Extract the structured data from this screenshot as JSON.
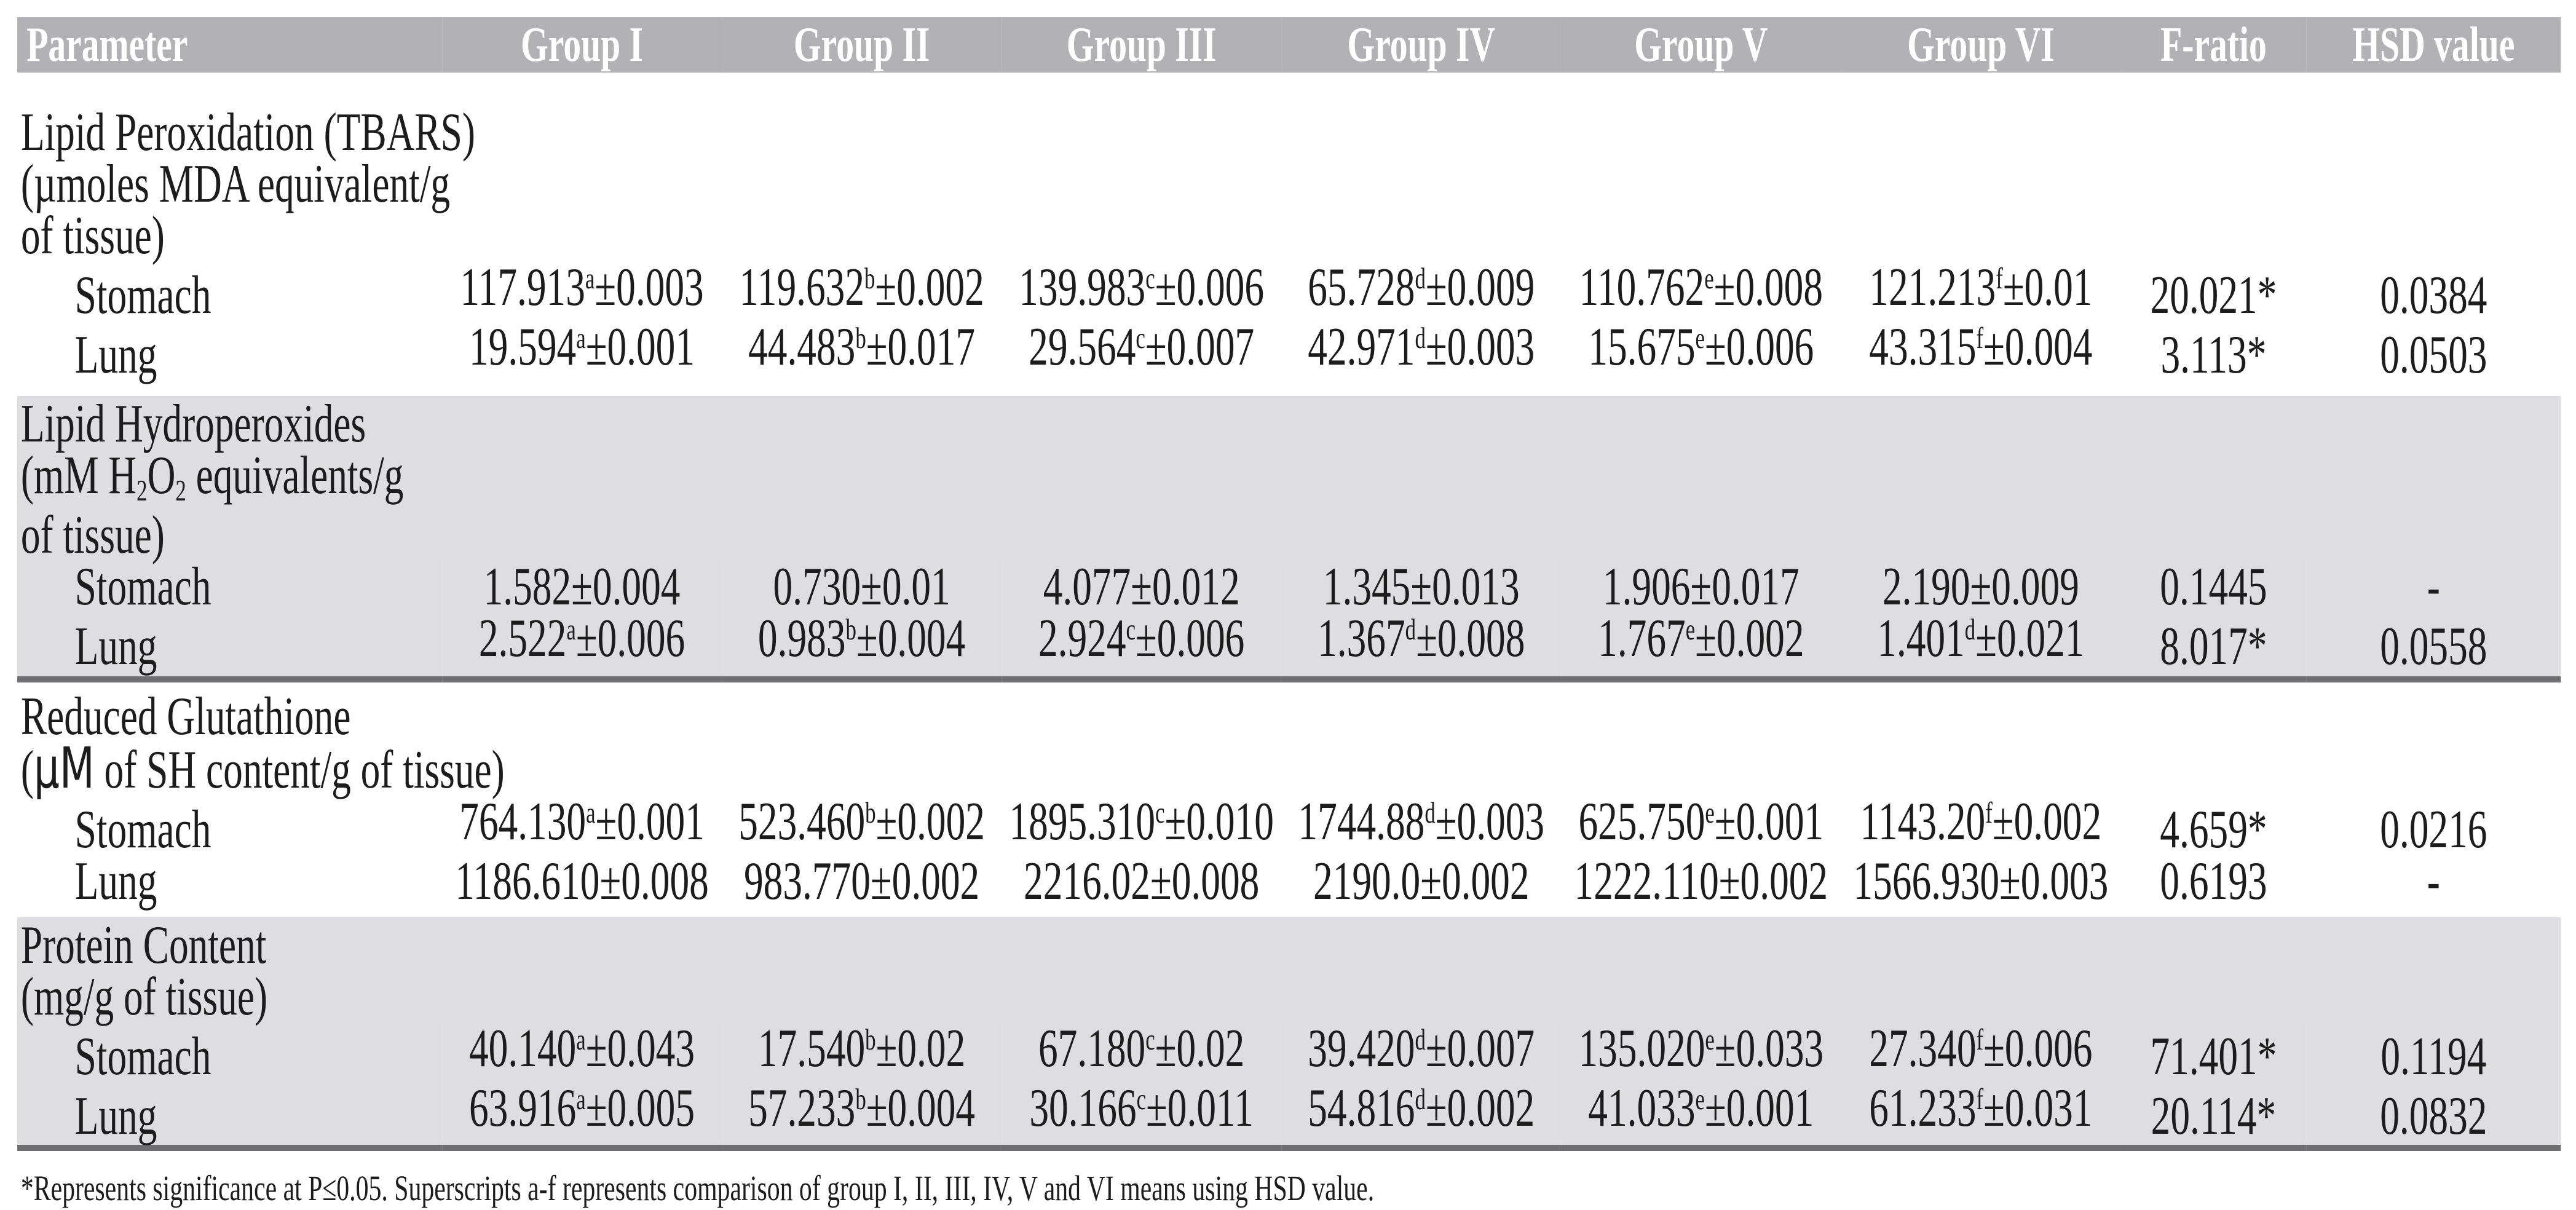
{
  "colors": {
    "header_bg": "#b2b2b4",
    "shaded_row_bg": "#dedee0",
    "section_rule": "#6e6e70",
    "header_text": "#ffffff",
    "body_text": "#1c1c1c"
  },
  "table": {
    "columns": [
      "Parameter",
      "Group I",
      "Group II",
      "Group III",
      "Group IV",
      "Group V",
      "Group VI",
      "F-ratio",
      "HSD value"
    ],
    "sections": [
      {
        "shaded": false,
        "param_lines": [
          "Lipid Peroxidation (TBARS)",
          "(µmoles MDA equivalent/g",
          "of tissue)"
        ],
        "rows": [
          {
            "label": "Stomach",
            "values": [
              "117.913^a±0.003",
              "119.632^b±0.002",
              "139.983^c±0.006",
              "65.728^d±0.009",
              "110.762^e±0.008",
              "121.213^f±0.01"
            ],
            "f": "20.021*",
            "hsd": "0.0384"
          },
          {
            "label": "Lung",
            "values": [
              "19.594^a±0.001",
              "44.483^b±0.017",
              "29.564^c±0.007",
              "42.971^d±0.003",
              "15.675^e±0.006",
              "43.315^f±0.004"
            ],
            "f": "3.113*",
            "hsd": "0.0503"
          }
        ]
      },
      {
        "shaded": true,
        "param_lines": [
          "Lipid Hydroperoxides",
          "(mM H_2O_2 equivalents/g",
          "of tissue)"
        ],
        "rows": [
          {
            "label": "Stomach",
            "values": [
              "1.582±0.004",
              "0.730±0.01",
              "4.077±0.012",
              "1.345±0.013",
              "1.906±0.017",
              "2.190±0.009"
            ],
            "f": "0.1445",
            "hsd": "-"
          },
          {
            "label": "Lung",
            "values": [
              "2.522^a±0.006",
              "0.983^b±0.004",
              "2.924^c±0.006",
              "1.367^d±0.008",
              "1.767^e±0.002",
              "1.401^d±0.021"
            ],
            "f": "8.017*",
            "hsd": "0.0558"
          }
        ]
      },
      {
        "shaded": false,
        "param_lines": [
          "Reduced Glutathione",
          "(~µM~ of SH content/g of tissue)"
        ],
        "rows": [
          {
            "label": "Stomach",
            "values": [
              "764.130^a±0.001",
              "523.460^b±0.002",
              "1895.310^c±0.010",
              "1744.88^d±0.003",
              "625.750^e±0.001",
              "1143.20^f±0.002"
            ],
            "f": "4.659*",
            "hsd": "0.0216"
          },
          {
            "label": "Lung",
            "values": [
              "1186.610±0.008",
              "983.770±0.002",
              "2216.02±0.008",
              "2190.0±0.002",
              "1222.110±0.002",
              "1566.930±0.003"
            ],
            "f": "0.6193",
            "hsd": "-"
          }
        ]
      },
      {
        "shaded": true,
        "param_lines": [
          "Protein Content",
          "(mg/g of tissue)"
        ],
        "rows": [
          {
            "label": "Stomach",
            "values": [
              "40.140^a±0.043",
              "17.540^b±0.02",
              "67.180^c±0.02",
              "39.420^d±0.007",
              "135.020^e±0.033",
              "27.340^f±0.006"
            ],
            "f": "71.401*",
            "hsd": "0.1194"
          },
          {
            "label": "Lung",
            "values": [
              "63.916^a±0.005",
              "57.233^b±0.004",
              "30.166^c±0.011",
              "54.816^d±0.002",
              "41.033^e±0.001",
              "61.233^f±0.031"
            ],
            "f": "20.114*",
            "hsd": "0.0832"
          }
        ]
      }
    ],
    "footnote": "*Represents significance at P≤0.05. Superscripts a-f represents comparison of group I, II, III, IV, V and VI means using HSD value."
  }
}
